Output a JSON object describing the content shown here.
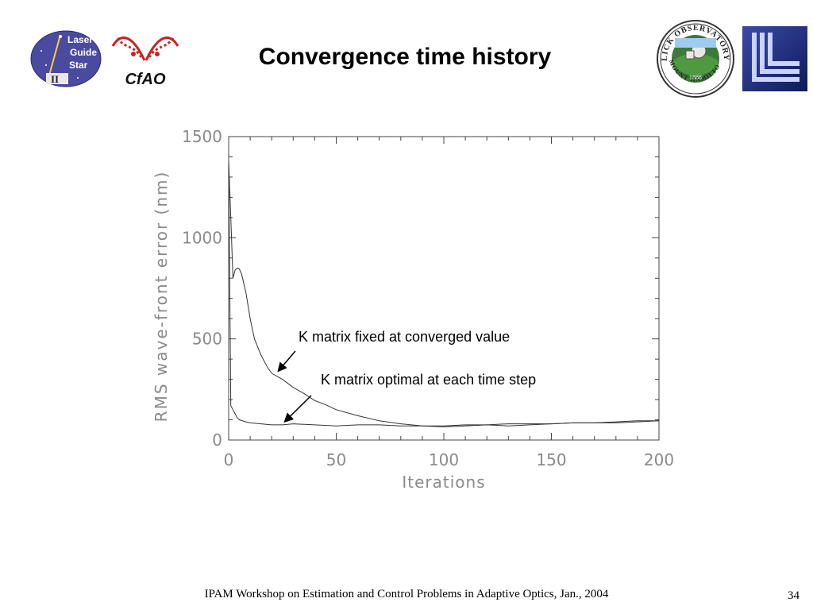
{
  "slide": {
    "title": "Convergence time history",
    "footer": "IPAM Workshop on Estimation and Control Problems in Adaptive Optics, Jan., 2004",
    "page_number": "34"
  },
  "logos": {
    "laser_guide_star": {
      "lines": [
        "Laser",
        "Guide",
        "Star"
      ],
      "tag": "II"
    },
    "cfao": {
      "text": "CfAO"
    },
    "lick": {
      "top_text": "LICK OBSERVATORY",
      "bottom_text": "MOUNT HAMILTON",
      "year": "1888"
    }
  },
  "chart_data": {
    "type": "line",
    "title": "",
    "xlabel": "Iterations",
    "ylabel": "RMS wave-front error (nm)",
    "xlim": [
      0,
      200
    ],
    "ylim": [
      0,
      1500
    ],
    "xticks": [
      0,
      50,
      100,
      150,
      200
    ],
    "yticks": [
      0,
      500,
      1000,
      1500
    ],
    "grid": false,
    "series": [
      {
        "x": [
          0,
          1,
          2,
          3,
          4,
          5,
          6,
          8,
          10,
          12,
          15,
          18,
          20,
          25,
          30,
          35,
          40,
          45,
          50,
          60,
          70,
          80,
          90,
          100,
          110,
          120,
          130,
          140,
          150,
          160,
          170,
          180,
          190,
          200
        ],
        "y": [
          1380,
          1100,
          800,
          840,
          850,
          845,
          820,
          730,
          600,
          500,
          420,
          360,
          330,
          300,
          260,
          230,
          195,
          175,
          150,
          120,
          95,
          80,
          70,
          65,
          70,
          75,
          70,
          75,
          80,
          85,
          85,
          90,
          95,
          95
        ]
      },
      {
        "x": [
          0,
          1,
          2,
          3,
          4,
          5,
          8,
          10,
          15,
          20,
          25,
          30,
          40,
          50,
          60,
          70,
          80,
          90,
          100,
          110,
          120,
          130,
          140,
          150,
          160,
          170,
          180,
          190,
          200
        ],
        "y": [
          1380,
          170,
          150,
          130,
          110,
          100,
          90,
          85,
          80,
          75,
          75,
          80,
          75,
          70,
          75,
          75,
          70,
          70,
          70,
          75,
          75,
          80,
          80,
          80,
          85,
          85,
          85,
          90,
          95
        ]
      }
    ],
    "annotations": [
      {
        "text": "K matrix fixed at converged value",
        "x": 23,
        "y": 340
      },
      {
        "text": "K matrix optimal at each time step",
        "x": 26,
        "y": 90
      }
    ]
  }
}
